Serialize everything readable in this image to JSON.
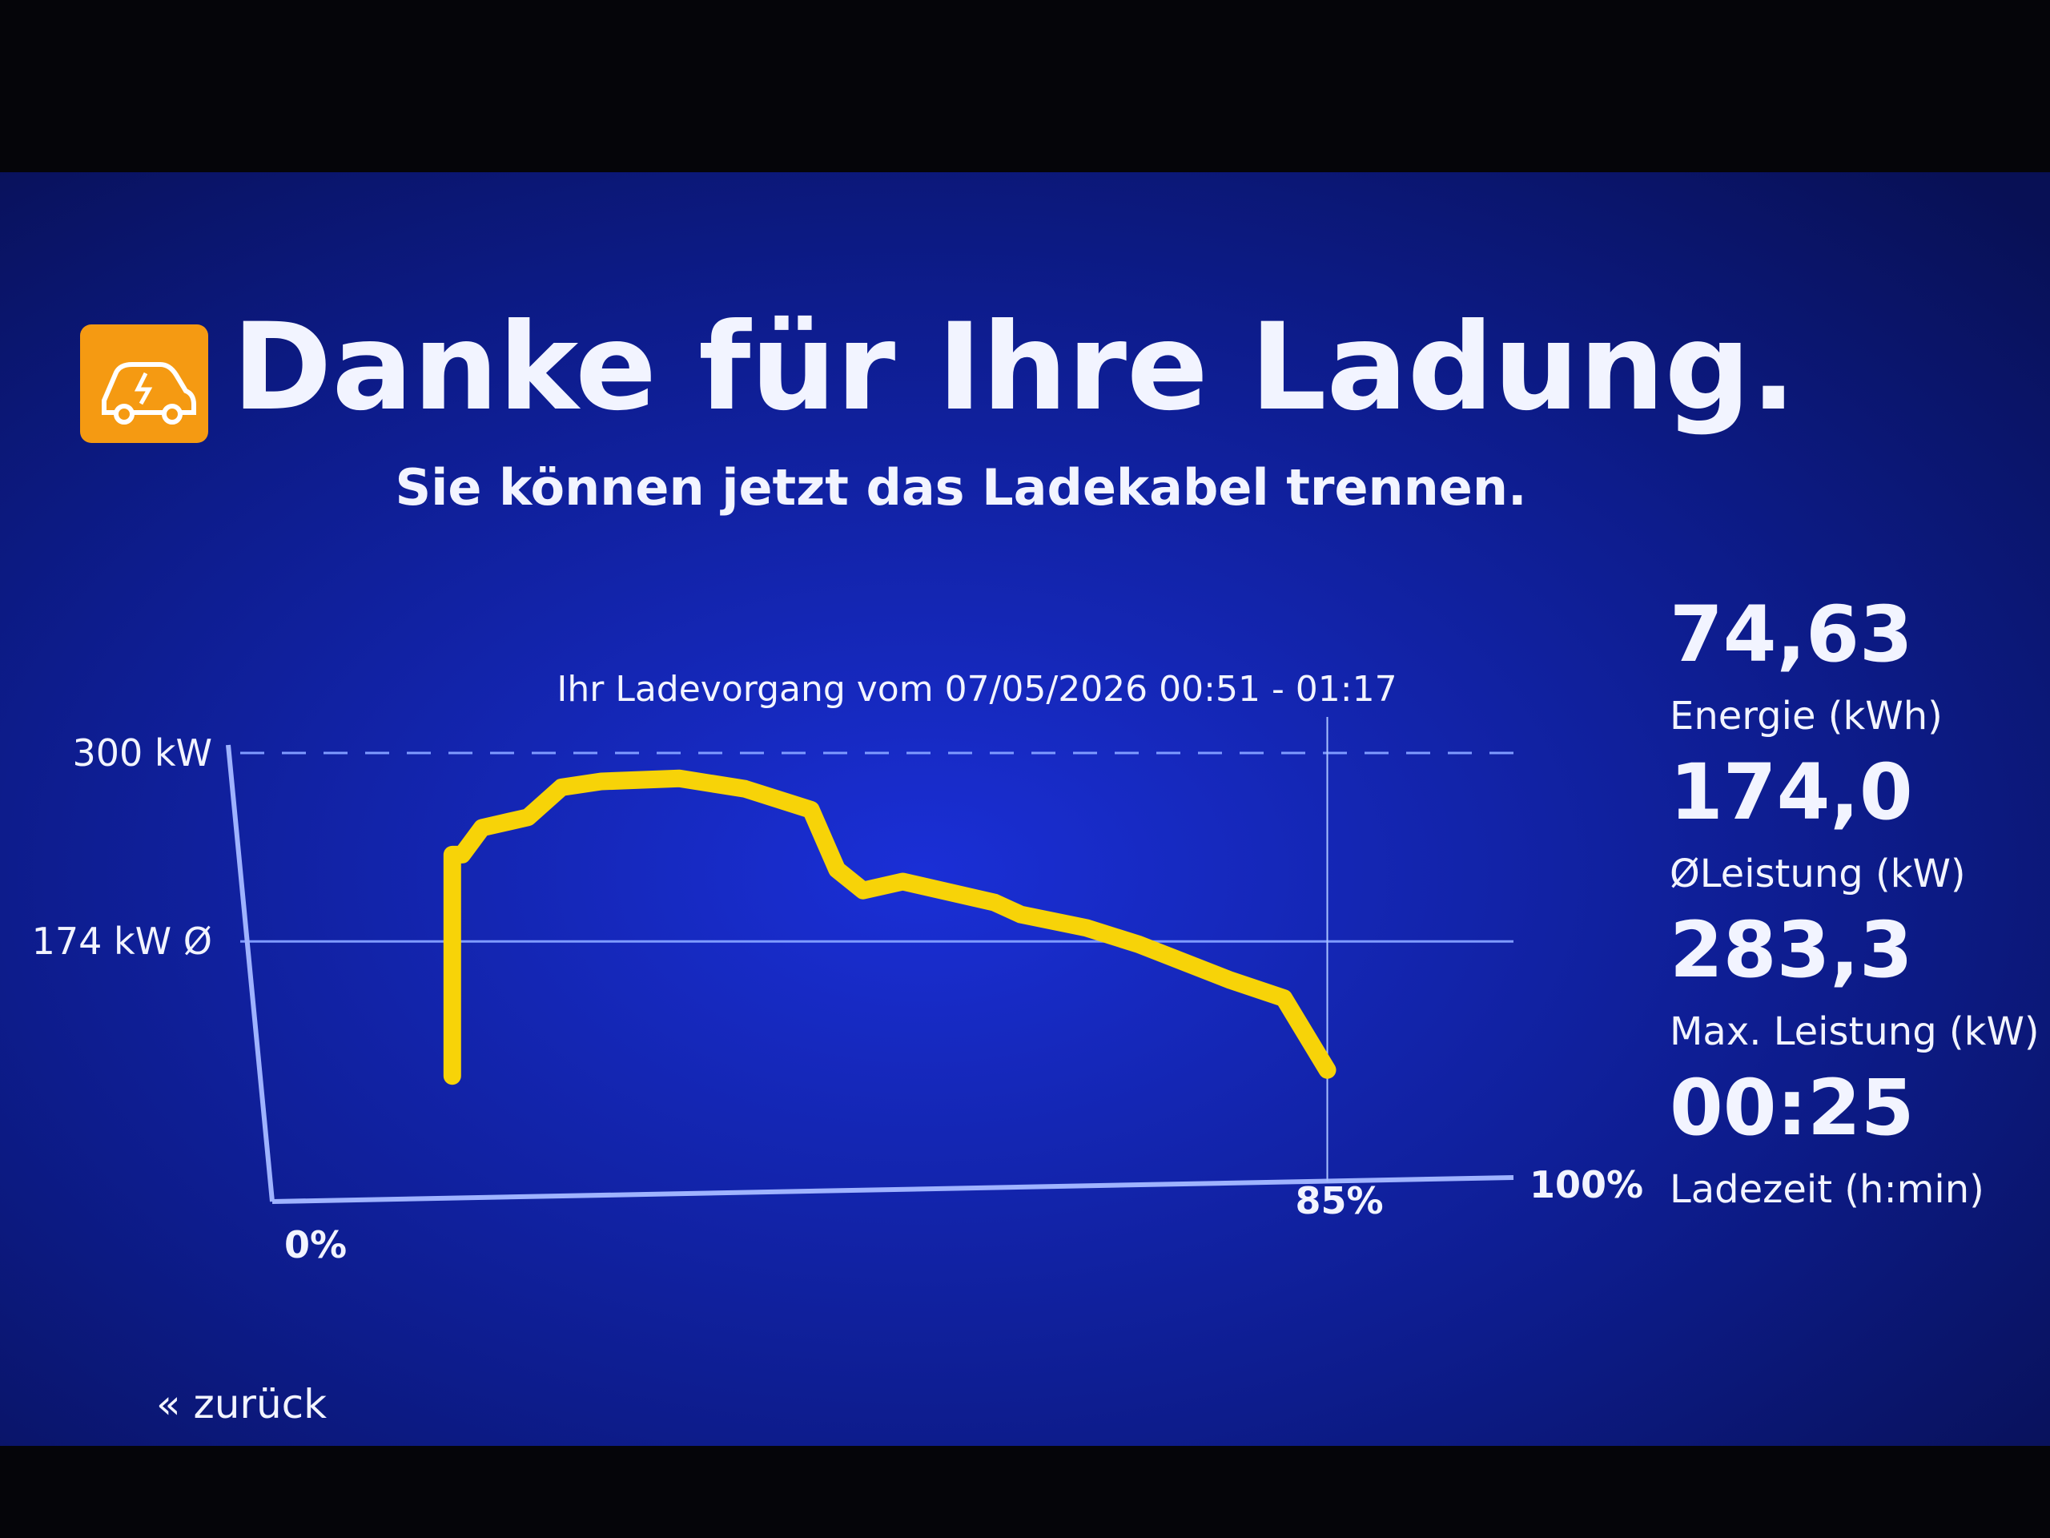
{
  "header": {
    "title": "Danke für Ihre Ladung.",
    "subtitle": "Sie können jetzt das Ladekabel trennen."
  },
  "chart_data": {
    "type": "line",
    "title": "Ihr Ladevorgang vom 07/05/2026 00:51 - 01:17",
    "x": [
      14.5,
      14.5,
      15.3,
      16.9,
      20.6,
      23.3,
      26.5,
      32.8,
      38.1,
      43.4,
      45.5,
      47.6,
      50.8,
      58.2,
      60.3,
      65.6,
      69.8,
      77.2,
      81.5,
      85
    ],
    "values": [
      84,
      232,
      232,
      250,
      257,
      277,
      281,
      283,
      276,
      262,
      222,
      208,
      214,
      200,
      192,
      183,
      172,
      148,
      136,
      88
    ],
    "color": "#f7d308",
    "xlim": [
      0,
      100
    ],
    "xticks": [
      {
        "value": 0,
        "label": "0%"
      },
      {
        "value": 100,
        "label": "100%"
      }
    ],
    "marker": {
      "value": 85,
      "label": "85%"
    },
    "ylim": [
      0,
      300
    ],
    "yticks": [
      {
        "value": 300,
        "label": "300 kW"
      },
      {
        "value": 174,
        "label": "174 kW Ø"
      }
    ],
    "grid": true
  },
  "stats": [
    {
      "value": "74,63",
      "label": "Energie (kWh)"
    },
    {
      "value": "174,0",
      "label": "ØLeistung (kW)"
    },
    {
      "value": "283,3",
      "label": "Max. Leistung (kW)"
    },
    {
      "value": "00:25",
      "label": "Ladezeit (h:min)"
    }
  ],
  "back": "« zurück"
}
